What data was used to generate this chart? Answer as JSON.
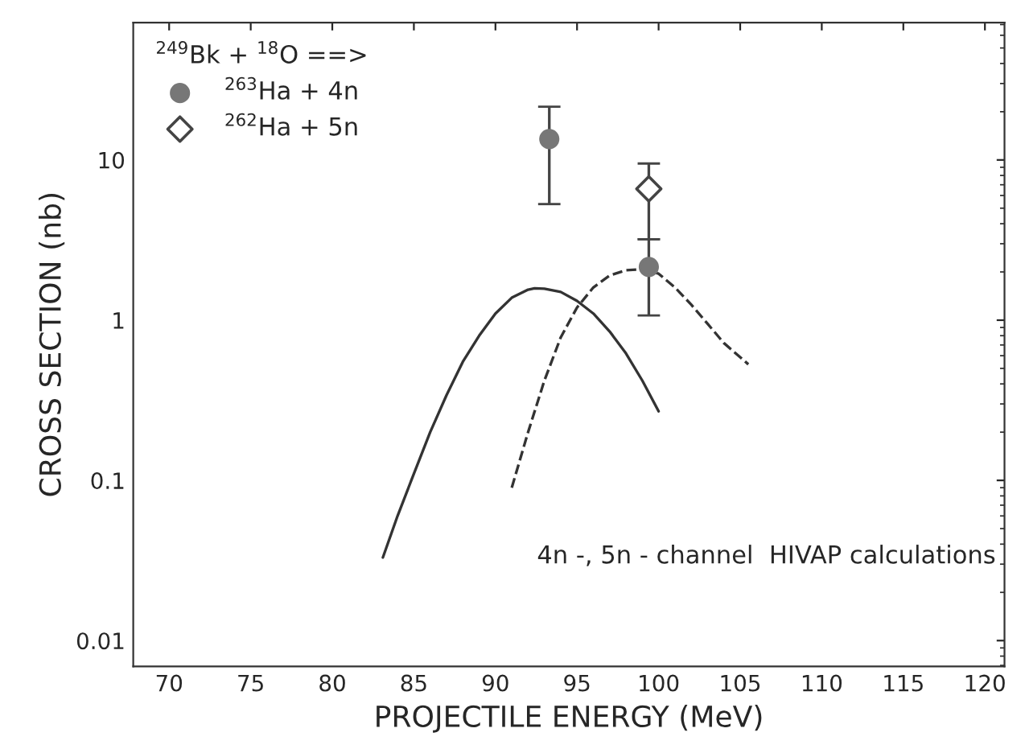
{
  "chart_data": {
    "type": "scatter",
    "xlabel": "PROJECTILE ENERGY (MeV)",
    "ylabel": "CROSS SECTION (nb)",
    "legend_title": "$^{249}$Bk + $^{18}$O ==>",
    "legend": "top left",
    "log": "y",
    "grid": false,
    "xlim": [
      67.8,
      121.2
    ],
    "xticks": [
      70,
      75,
      80,
      85,
      90,
      95,
      100,
      105,
      110,
      115,
      120
    ],
    "ylim": [
      0.0069,
      72
    ],
    "yticks": [
      0.01,
      0.1,
      1,
      10
    ],
    "series": [
      {
        "name": "$^{263}$Ha + 4n",
        "marker": "circle",
        "color": "#777777",
        "x": [
          93.3,
          99.4
        ],
        "values": [
          13.5,
          2.15
        ],
        "errors": [
          [
            5.3,
            21.5
          ],
          [
            1.07,
            3.2
          ]
        ]
      },
      {
        "name": "$^{262}$Ha + 5n",
        "marker": "diamond",
        "color": "#444444",
        "x": [
          99.4
        ],
        "values": [
          6.6
        ],
        "errors": [
          [
            3.2,
            9.5
          ]
        ]
      },
      {
        "type": "line",
        "line_style": "solid",
        "color": "#333333",
        "x": [
          83.1,
          84,
          85,
          86,
          87,
          88,
          89,
          90,
          91,
          92,
          92.4,
          93,
          94,
          95,
          96,
          97,
          98,
          99,
          100
        ],
        "values": [
          0.033,
          0.06,
          0.11,
          0.2,
          0.34,
          0.55,
          0.8,
          1.1,
          1.38,
          1.55,
          1.58,
          1.57,
          1.5,
          1.32,
          1.1,
          0.85,
          0.62,
          0.42,
          0.27
        ]
      },
      {
        "type": "line",
        "line_style": "dashed",
        "color": "#333333",
        "x": [
          91.0,
          92,
          93,
          94,
          95,
          96,
          97,
          98,
          99,
          100,
          101,
          102,
          103,
          104,
          105.5
        ],
        "values": [
          0.09,
          0.2,
          0.42,
          0.78,
          1.2,
          1.6,
          1.9,
          2.05,
          2.08,
          1.95,
          1.6,
          1.25,
          0.95,
          0.72,
          0.53
        ]
      }
    ],
    "annotations": [
      "4n -, 5n - channel  HIVAP calculations"
    ]
  }
}
